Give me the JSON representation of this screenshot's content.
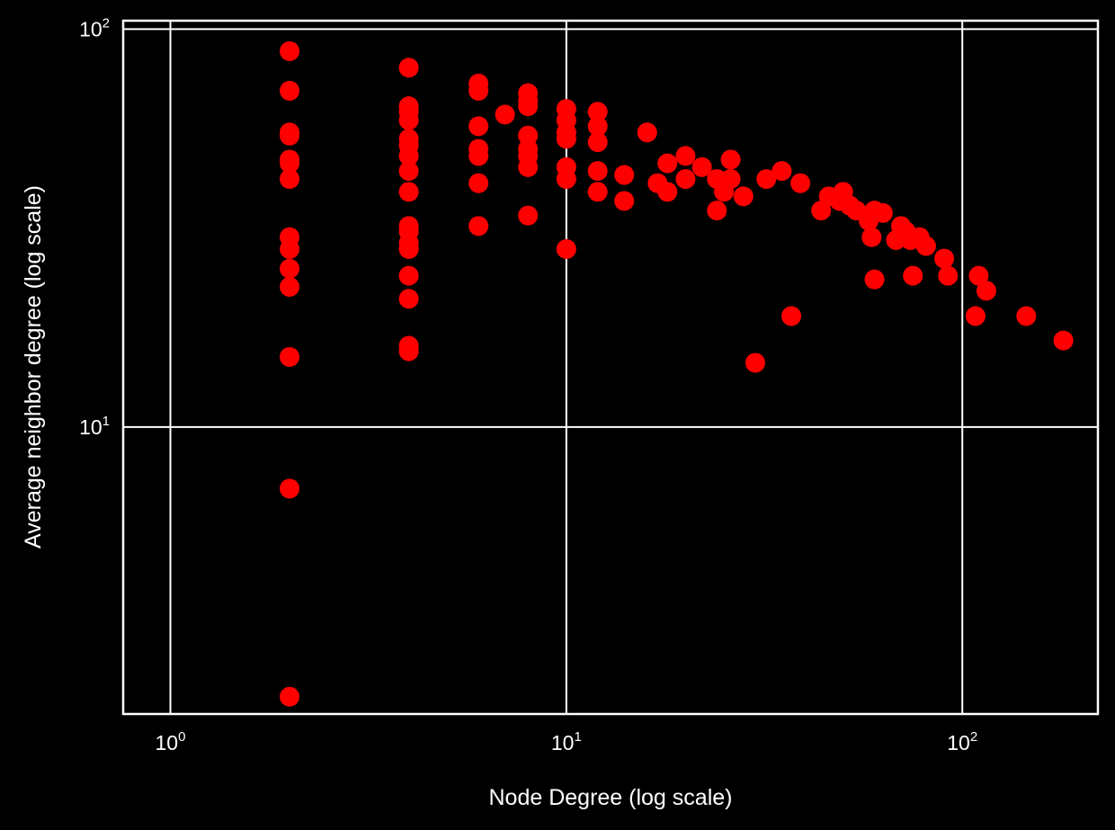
{
  "chart_data": {
    "type": "scatter",
    "title": "",
    "xlabel": "Node Degree (log scale)",
    "ylabel": "Average neighbor degree (log scale)",
    "xscale": "log",
    "yscale": "log",
    "xlim": [
      0.76,
      220
    ],
    "ylim": [
      1.9,
      105
    ],
    "grid": true,
    "x_ticks": [
      {
        "base": "10",
        "exp": "0",
        "value": 1
      },
      {
        "base": "10",
        "exp": "1",
        "value": 10
      },
      {
        "base": "10",
        "exp": "2",
        "value": 100
      }
    ],
    "y_ticks": [
      {
        "base": "10",
        "exp": "1",
        "value": 10
      },
      {
        "base": "10",
        "exp": "2",
        "value": 100
      }
    ],
    "colors": {
      "background": "#000000",
      "marker": "#ff0000",
      "grid": "#ffffff",
      "text": "#ffffff"
    },
    "points": [
      {
        "x": 2,
        "y": 88
      },
      {
        "x": 2,
        "y": 70
      },
      {
        "x": 2,
        "y": 55
      },
      {
        "x": 2,
        "y": 54
      },
      {
        "x": 2,
        "y": 47
      },
      {
        "x": 2,
        "y": 46
      },
      {
        "x": 2,
        "y": 42
      },
      {
        "x": 2,
        "y": 30
      },
      {
        "x": 2,
        "y": 28
      },
      {
        "x": 2,
        "y": 25
      },
      {
        "x": 2,
        "y": 22.5
      },
      {
        "x": 2,
        "y": 15
      },
      {
        "x": 2,
        "y": 7
      },
      {
        "x": 2,
        "y": 2.1
      },
      {
        "x": 4,
        "y": 80
      },
      {
        "x": 4,
        "y": 64
      },
      {
        "x": 4,
        "y": 62
      },
      {
        "x": 4,
        "y": 59
      },
      {
        "x": 4,
        "y": 53
      },
      {
        "x": 4,
        "y": 51
      },
      {
        "x": 4,
        "y": 48
      },
      {
        "x": 4,
        "y": 44
      },
      {
        "x": 4,
        "y": 39
      },
      {
        "x": 4,
        "y": 32
      },
      {
        "x": 4,
        "y": 31
      },
      {
        "x": 4,
        "y": 29
      },
      {
        "x": 4,
        "y": 28
      },
      {
        "x": 4,
        "y": 24
      },
      {
        "x": 4,
        "y": 21
      },
      {
        "x": 4,
        "y": 16
      },
      {
        "x": 4,
        "y": 15.5
      },
      {
        "x": 6,
        "y": 73
      },
      {
        "x": 6,
        "y": 70
      },
      {
        "x": 6,
        "y": 57
      },
      {
        "x": 6,
        "y": 50
      },
      {
        "x": 6,
        "y": 48
      },
      {
        "x": 6,
        "y": 41
      },
      {
        "x": 6,
        "y": 32
      },
      {
        "x": 7,
        "y": 61
      },
      {
        "x": 8,
        "y": 69
      },
      {
        "x": 8,
        "y": 66
      },
      {
        "x": 8,
        "y": 64
      },
      {
        "x": 8,
        "y": 54
      },
      {
        "x": 8,
        "y": 50
      },
      {
        "x": 8,
        "y": 48
      },
      {
        "x": 8,
        "y": 45
      },
      {
        "x": 8,
        "y": 34
      },
      {
        "x": 10,
        "y": 63
      },
      {
        "x": 10,
        "y": 59
      },
      {
        "x": 10,
        "y": 55
      },
      {
        "x": 10,
        "y": 53
      },
      {
        "x": 10,
        "y": 45
      },
      {
        "x": 10,
        "y": 42
      },
      {
        "x": 10,
        "y": 28
      },
      {
        "x": 12,
        "y": 62
      },
      {
        "x": 12,
        "y": 57
      },
      {
        "x": 12,
        "y": 52
      },
      {
        "x": 12,
        "y": 44
      },
      {
        "x": 12,
        "y": 39
      },
      {
        "x": 14,
        "y": 43
      },
      {
        "x": 14,
        "y": 37
      },
      {
        "x": 16,
        "y": 55
      },
      {
        "x": 17,
        "y": 41
      },
      {
        "x": 18,
        "y": 46
      },
      {
        "x": 18,
        "y": 39
      },
      {
        "x": 20,
        "y": 48
      },
      {
        "x": 20,
        "y": 42
      },
      {
        "x": 22,
        "y": 45
      },
      {
        "x": 24,
        "y": 42
      },
      {
        "x": 24,
        "y": 35
      },
      {
        "x": 25,
        "y": 39
      },
      {
        "x": 26,
        "y": 47
      },
      {
        "x": 26,
        "y": 42
      },
      {
        "x": 28,
        "y": 38
      },
      {
        "x": 30,
        "y": 14.5
      },
      {
        "x": 32,
        "y": 42
      },
      {
        "x": 35,
        "y": 44
      },
      {
        "x": 37,
        "y": 19
      },
      {
        "x": 39,
        "y": 41
      },
      {
        "x": 44,
        "y": 35
      },
      {
        "x": 46,
        "y": 38
      },
      {
        "x": 49,
        "y": 37
      },
      {
        "x": 50,
        "y": 39
      },
      {
        "x": 52,
        "y": 36
      },
      {
        "x": 54,
        "y": 35
      },
      {
        "x": 58,
        "y": 33
      },
      {
        "x": 59,
        "y": 30
      },
      {
        "x": 60,
        "y": 35
      },
      {
        "x": 60,
        "y": 23.5
      },
      {
        "x": 63,
        "y": 34.5
      },
      {
        "x": 68,
        "y": 29.5
      },
      {
        "x": 70,
        "y": 32
      },
      {
        "x": 72,
        "y": 31
      },
      {
        "x": 74,
        "y": 29.5
      },
      {
        "x": 75,
        "y": 24
      },
      {
        "x": 78,
        "y": 30
      },
      {
        "x": 81,
        "y": 28.5
      },
      {
        "x": 90,
        "y": 26.5
      },
      {
        "x": 92,
        "y": 24
      },
      {
        "x": 108,
        "y": 19
      },
      {
        "x": 110,
        "y": 24
      },
      {
        "x": 115,
        "y": 22
      },
      {
        "x": 145,
        "y": 19
      },
      {
        "x": 180,
        "y": 16.5
      }
    ]
  }
}
